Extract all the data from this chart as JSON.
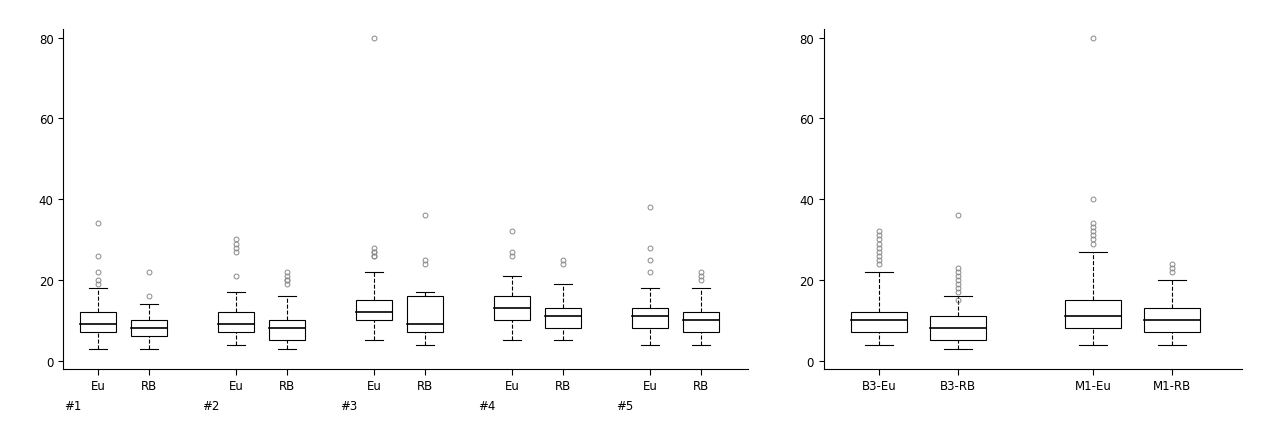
{
  "left_plot": {
    "tick_labels_sub": [
      "Eu",
      "RB",
      "Eu",
      "RB",
      "Eu",
      "RB",
      "Eu",
      "RB",
      "Eu",
      "RB"
    ],
    "tick_labels_main": [
      "#1",
      "#2",
      "#3",
      "#4",
      "#5"
    ],
    "ylim": [
      -2,
      82
    ],
    "yticks": [
      0,
      20,
      40,
      60,
      80
    ],
    "boxes": [
      {
        "q1": 7,
        "median": 9,
        "q3": 12,
        "whisker_low": 3,
        "whisker_high": 18,
        "outliers": [
          22,
          26,
          34,
          20,
          19
        ]
      },
      {
        "q1": 6,
        "median": 8,
        "q3": 10,
        "whisker_low": 3,
        "whisker_high": 14,
        "outliers": [
          22,
          16
        ]
      },
      {
        "q1": 7,
        "median": 9,
        "q3": 12,
        "whisker_low": 4,
        "whisker_high": 17,
        "outliers": [
          21,
          29,
          30,
          27,
          28
        ]
      },
      {
        "q1": 5,
        "median": 8,
        "q3": 10,
        "whisker_low": 3,
        "whisker_high": 16,
        "outliers": [
          20,
          21,
          22,
          20,
          19
        ]
      },
      {
        "q1": 10,
        "median": 12,
        "q3": 15,
        "whisker_low": 5,
        "whisker_high": 22,
        "outliers": [
          26,
          27,
          28,
          27,
          26,
          80
        ]
      },
      {
        "q1": 7,
        "median": 9,
        "q3": 16,
        "whisker_low": 4,
        "whisker_high": 17,
        "outliers": [
          36,
          25,
          24
        ]
      },
      {
        "q1": 10,
        "median": 13,
        "q3": 16,
        "whisker_low": 5,
        "whisker_high": 21,
        "outliers": [
          26,
          32,
          27
        ]
      },
      {
        "q1": 8,
        "median": 11,
        "q3": 13,
        "whisker_low": 5,
        "whisker_high": 19,
        "outliers": [
          25,
          24
        ]
      },
      {
        "q1": 8,
        "median": 11,
        "q3": 13,
        "whisker_low": 4,
        "whisker_high": 18,
        "outliers": [
          22,
          25,
          28,
          38
        ]
      },
      {
        "q1": 7,
        "median": 10,
        "q3": 12,
        "whisker_low": 4,
        "whisker_high": 18,
        "outliers": [
          20,
          21,
          22
        ]
      }
    ]
  },
  "right_plot": {
    "groups": [
      "B3-Eu",
      "B3-RB",
      "M1-Eu",
      "M1-RB"
    ],
    "ylim": [
      -2,
      82
    ],
    "yticks": [
      0,
      20,
      40,
      60,
      80
    ],
    "boxes": [
      {
        "q1": 7,
        "median": 10,
        "q3": 12,
        "whisker_low": 4,
        "whisker_high": 22,
        "outliers": [
          26,
          27,
          28,
          29,
          30,
          31,
          32,
          25,
          24
        ]
      },
      {
        "q1": 5,
        "median": 8,
        "q3": 11,
        "whisker_low": 3,
        "whisker_high": 16,
        "outliers": [
          21,
          22,
          23,
          19,
          20,
          18,
          17,
          15,
          36
        ]
      },
      {
        "q1": 8,
        "median": 11,
        "q3": 15,
        "whisker_low": 4,
        "whisker_high": 27,
        "outliers": [
          33,
          34,
          30,
          31,
          32,
          29,
          40,
          80
        ]
      },
      {
        "q1": 7,
        "median": 10,
        "q3": 13,
        "whisker_low": 4,
        "whisker_high": 20,
        "outliers": [
          23,
          24,
          22
        ]
      }
    ]
  },
  "box_color": "#ffffff",
  "box_edge_color": "#000000",
  "median_color": "#000000",
  "whisker_color": "#000000",
  "flier_color": "#888888",
  "background_color": "#ffffff"
}
